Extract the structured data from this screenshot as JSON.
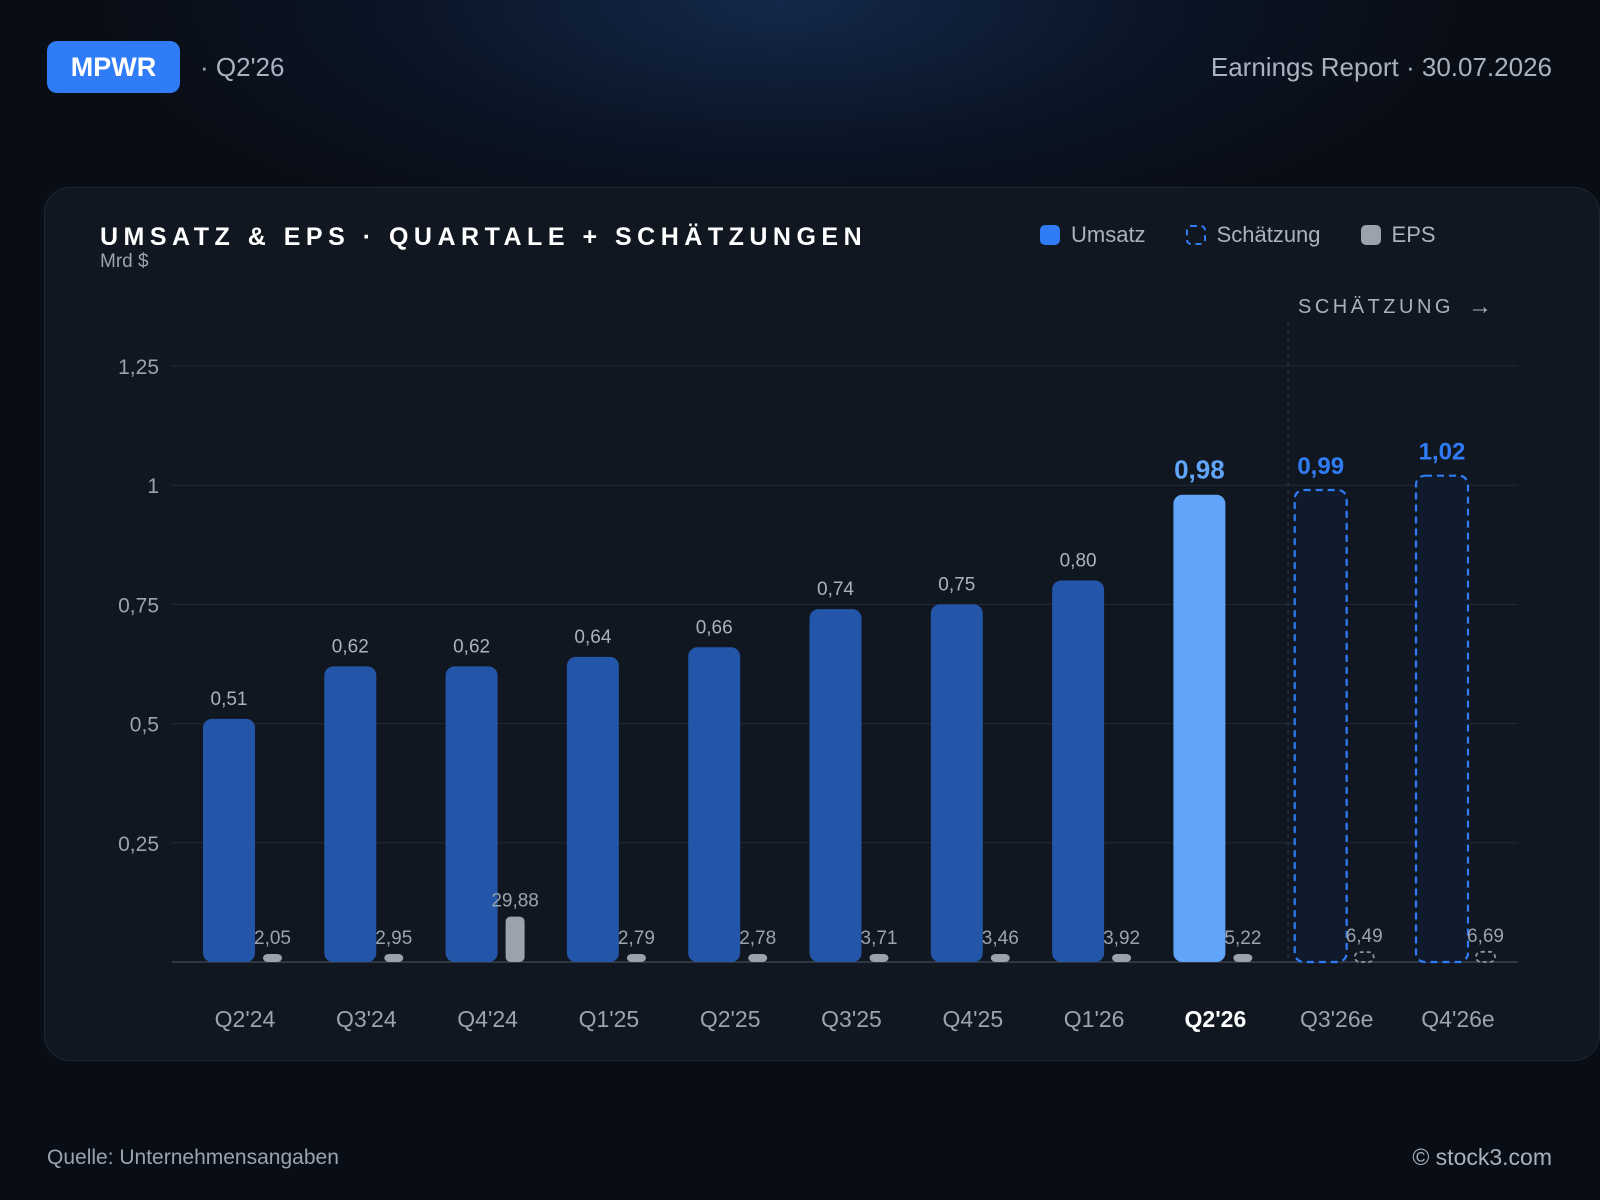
{
  "header": {
    "ticker": "MPWR",
    "period": "· Q2'26",
    "report": "Earnings Report · 30.07.2026"
  },
  "legend": {
    "revenue": "Umsatz",
    "estimate": "Schätzung",
    "eps": "EPS"
  },
  "estimate_marker": "SCHÄTZUNG",
  "footer": {
    "source": "Quelle: Unternehmensangaben",
    "copyright": "© stock3.com"
  },
  "colors": {
    "revenue": "#2356a8",
    "revenue_current": "#61a5fb",
    "estimate": "#2f7cf6",
    "eps": "#9aa2ad",
    "accent": "#2f7cf6"
  },
  "chart_data": {
    "type": "bar",
    "title": "UMSATZ & EPS · QUARTALE + SCHÄTZUNGEN",
    "ylabel": "Mrd $",
    "ylim": [
      0,
      1.25
    ],
    "yticks": [
      {
        "value": 0.25,
        "label": "0,25"
      },
      {
        "value": 0.5,
        "label": "0,5"
      },
      {
        "value": 0.75,
        "label": "0,75"
      },
      {
        "value": 1,
        "label": "1"
      },
      {
        "value": 1.25,
        "label": "1,25"
      }
    ],
    "grid": true,
    "legend_position": "top-right",
    "categories": [
      "Q2'24",
      "Q3'24",
      "Q4'24",
      "Q1'25",
      "Q2'25",
      "Q3'25",
      "Q4'25",
      "Q1'26",
      "Q2'26",
      "Q3'26e",
      "Q4'26e"
    ],
    "current_index": 8,
    "estimate_from_index": 9,
    "series": [
      {
        "name": "Umsatz",
        "values": [
          0.51,
          0.62,
          0.62,
          0.64,
          0.66,
          0.74,
          0.75,
          0.8,
          0.98,
          0.99,
          1.02
        ],
        "labels": [
          "0,51",
          "0,62",
          "0,62",
          "0,64",
          "0,66",
          "0,74",
          "0,75",
          "0,80",
          "0,98",
          "0,99",
          "1,02"
        ]
      },
      {
        "name": "EPS",
        "values": [
          2.05,
          2.95,
          29.88,
          2.79,
          2.78,
          3.71,
          3.46,
          3.92,
          5.22,
          6.49,
          6.69
        ],
        "labels": [
          "2,05",
          "2,95",
          "29,88",
          "2,79",
          "2,78",
          "3,71",
          "3,46",
          "3,92",
          "5,22",
          "6,49",
          "6,69"
        ]
      }
    ]
  }
}
